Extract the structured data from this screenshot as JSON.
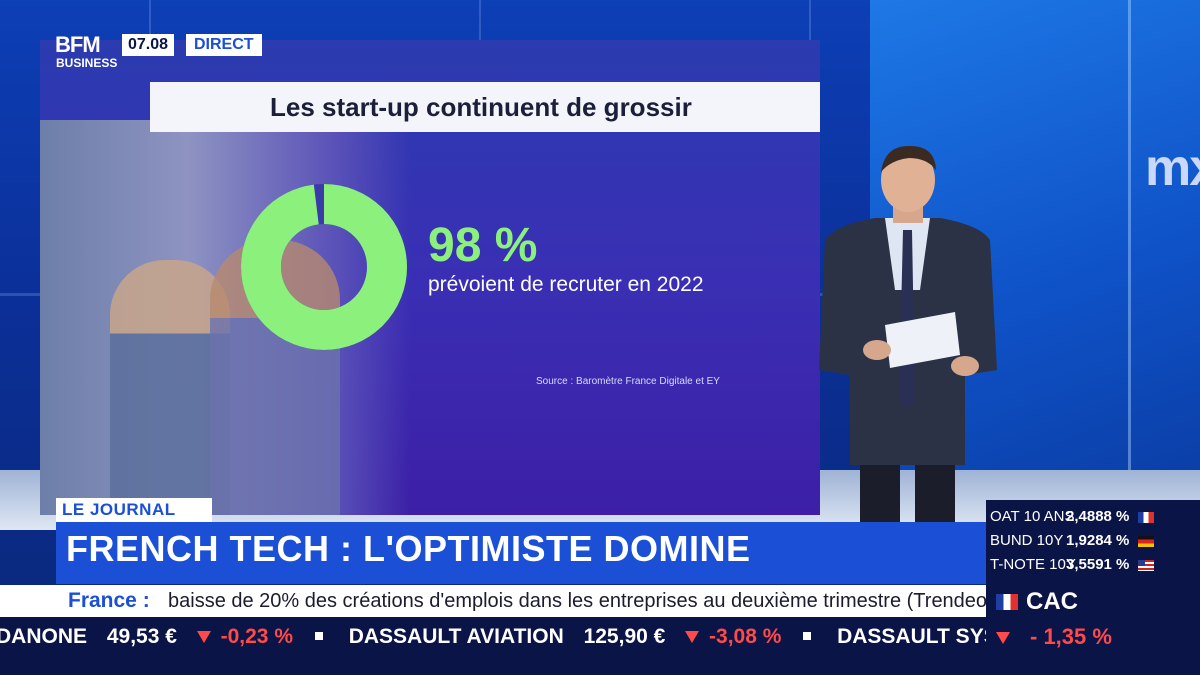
{
  "channel": {
    "logo_text": "BFM",
    "logo_sub": "BUSINESS",
    "time": "07.08",
    "live_label": "DIRECT"
  },
  "background": {
    "wall_logo_text": "mx"
  },
  "screen": {
    "title": "Les start-up continuent de grossir",
    "stat_value": "98 %",
    "stat_fraction": 0.98,
    "stat_description": "prévoient de recruter en 2022",
    "source": "Source : Baromètre France Digitale et EY",
    "donut_color": "#8cf07d"
  },
  "lower_third": {
    "tag": "LE JOURNAL",
    "headline": "FRENCH TECH : L'OPTIMISTE DOMINE",
    "news_label": "France :",
    "news_text": "baisse de 20% des créations d'emplois dans les entreprises au deuxième trimestre (Trendeo)."
  },
  "ticker": {
    "items": [
      {
        "name": "DANONE",
        "price": "49,53 €",
        "change": "-0,23 %"
      },
      {
        "name": "DASSAULT AVIATION",
        "price": "125,90 €",
        "change": "-3,08 %"
      },
      {
        "name": "DASSAULT SYSTÈMES",
        "price": "",
        "change": ""
      }
    ]
  },
  "markets": {
    "rates": [
      {
        "name": "OAT 10 ANS",
        "value": "2,4888 %",
        "flag": "fr"
      },
      {
        "name": "BUND 10Y",
        "value": "1,9284 %",
        "flag": "de"
      },
      {
        "name": "T-NOTE 10Y",
        "value": "3,5591 %",
        "flag": "us"
      }
    ],
    "index_name": "CAC",
    "index_change": "- 1,35 %"
  },
  "colors": {
    "brand_blue": "#1a4fd6",
    "dark_navy": "#0a1446",
    "negative": "#ff4a4a",
    "positive_green": "#8cf07d"
  }
}
